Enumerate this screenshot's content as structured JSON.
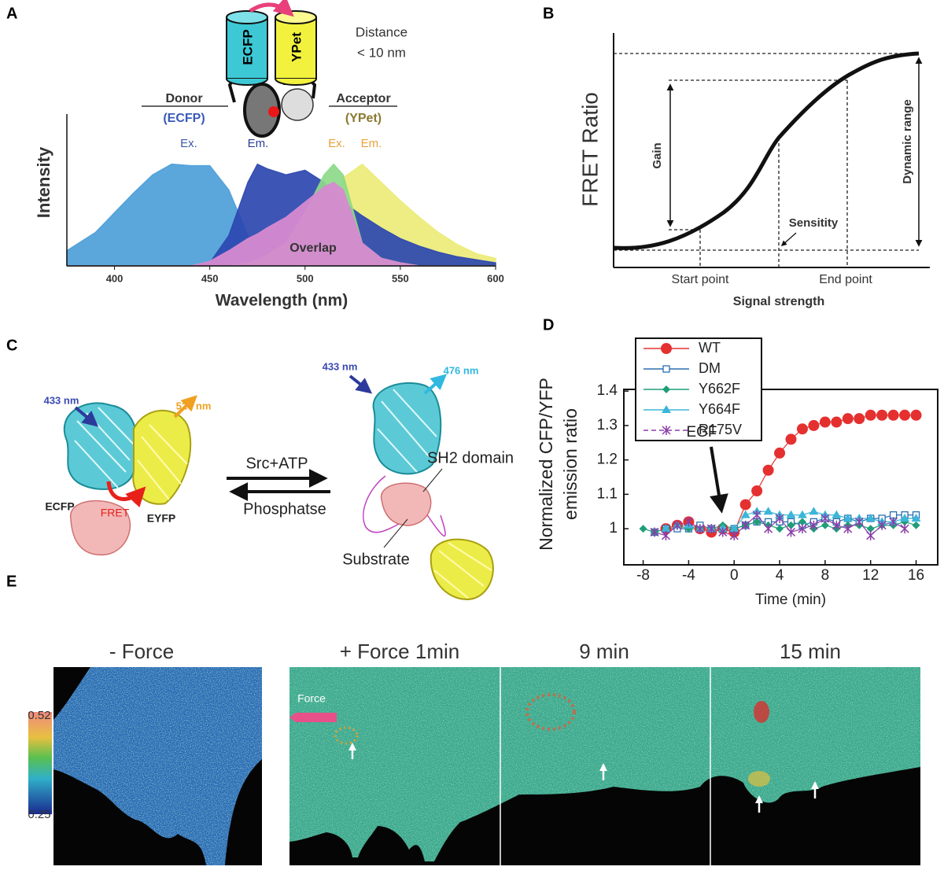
{
  "panel_labels": [
    "A",
    "B",
    "C",
    "D",
    "E"
  ],
  "chart_data": [
    {
      "type": "area",
      "xlabel": "Wavelength (nm)",
      "ylabel": "Intensity",
      "xlim": [
        375,
        600
      ],
      "xticks": [
        400,
        450,
        500,
        550,
        600
      ],
      "ylim": [
        0,
        1
      ],
      "x": [
        375,
        390,
        400,
        410,
        420,
        430,
        440,
        450,
        460,
        470,
        475,
        480,
        490,
        500,
        510,
        515,
        520,
        530,
        540,
        550,
        560,
        570,
        580,
        590,
        600
      ],
      "series": [
        {
          "name": "Ex.",
          "color": "#4d9fd9",
          "values": [
            0.1,
            0.22,
            0.35,
            0.48,
            0.6,
            0.67,
            0.66,
            0.66,
            0.5,
            0.2,
            0.1,
            0.05,
            0.02,
            0,
            0,
            0,
            0,
            0,
            0,
            0,
            0,
            0,
            0,
            0,
            0
          ]
        },
        {
          "name": "Em.",
          "color": "#ebeb78",
          "values": [
            0,
            0,
            0,
            0,
            0,
            0,
            0,
            0,
            0,
            0,
            0,
            0,
            0.03,
            0.12,
            0.35,
            0.45,
            0.58,
            0.67,
            0.55,
            0.43,
            0.32,
            0.22,
            0.14,
            0.08,
            0.05
          ]
        },
        {
          "name": "Em.",
          "color": "#2d48b0",
          "values": [
            0,
            0,
            0,
            0,
            0,
            0,
            0,
            0.02,
            0.2,
            0.55,
            0.67,
            0.64,
            0.6,
            0.63,
            0.55,
            0.48,
            0.42,
            0.33,
            0.25,
            0.18,
            0.13,
            0.09,
            0.06,
            0.04,
            0.02
          ]
        },
        {
          "name": "Ex.",
          "color": "#8dd98a",
          "values": [
            0,
            0,
            0,
            0,
            0,
            0,
            0,
            0,
            0,
            0.02,
            0.04,
            0.07,
            0.15,
            0.35,
            0.6,
            0.67,
            0.6,
            0.15,
            0.05,
            0.02,
            0,
            0,
            0,
            0,
            0
          ]
        },
        {
          "name": "Overlap",
          "color": "#d68ad0",
          "values": [
            0,
            0,
            0,
            0,
            0,
            0,
            0,
            0.03,
            0.1,
            0.18,
            0.21,
            0.25,
            0.32,
            0.42,
            0.52,
            0.55,
            0.5,
            0.15,
            0.05,
            0.02,
            0,
            0,
            0,
            0,
            0
          ]
        }
      ]
    },
    {
      "type": "line",
      "xlabel": "Time (min)",
      "ylabel": [
        "Normalized CFP/YFP",
        "emission ratio"
      ],
      "annotation": "EGF",
      "legend": "upper left",
      "xlim": [
        -9.7,
        17.9
      ],
      "xticks": [
        -8,
        -4,
        0,
        4,
        8,
        12,
        16
      ],
      "ylim": [
        0.895,
        1.405
      ],
      "yticks": [
        1,
        1.1,
        1.2,
        1.3,
        1.4
      ],
      "x": [
        -8,
        -7,
        -6,
        -5,
        -4,
        -3,
        -2,
        -1,
        0,
        1,
        2,
        3,
        4,
        5,
        6,
        7,
        8,
        9,
        10,
        11,
        12,
        13,
        14,
        15,
        16
      ],
      "series": [
        {
          "name": "WT",
          "color": "#e53030",
          "marker": "circle",
          "values": [
            null,
            null,
            1.0,
            1.01,
            1.02,
            1.0,
            0.99,
            1.0,
            0.99,
            1.07,
            1.11,
            1.17,
            1.22,
            1.26,
            1.29,
            1.3,
            1.31,
            1.31,
            1.32,
            1.32,
            1.33,
            1.33,
            1.33,
            1.33,
            1.33
          ]
        },
        {
          "name": "DM",
          "color": "#2a6fb0",
          "marker": "square",
          "values": [
            null,
            0.99,
            1.0,
            1.0,
            1.0,
            1.01,
            1.0,
            1.0,
            1.0,
            1.01,
            1.02,
            1.02,
            1.02,
            1.02,
            1.01,
            1.02,
            1.03,
            1.02,
            1.03,
            1.02,
            1.03,
            1.03,
            1.04,
            1.04,
            1.04
          ]
        },
        {
          "name": "Y662F",
          "color": "#1f9e78",
          "marker": "diamond",
          "values": [
            1.0,
            0.99,
            1.0,
            1.01,
            1.0,
            1.0,
            1.0,
            1.01,
            1.0,
            1.01,
            1.02,
            1.01,
            1.0,
            1.01,
            1.02,
            1.0,
            1.01,
            1.0,
            1.01,
            1.01,
            1.0,
            1.01,
            1.01,
            1.02,
            1.01
          ]
        },
        {
          "name": "Y664F",
          "color": "#3bb6d8",
          "marker": "triangle",
          "values": [
            null,
            null,
            1.0,
            1.01,
            1.01,
            1.0,
            1.0,
            1.0,
            1.0,
            1.04,
            1.05,
            1.05,
            1.04,
            1.04,
            1.04,
            1.05,
            1.04,
            1.04,
            1.03,
            1.03,
            1.03,
            1.02,
            1.02,
            1.03,
            1.03
          ]
        },
        {
          "name": "R175V",
          "color": "#8b3ea8",
          "marker": "asterisk",
          "values": [
            null,
            0.99,
            0.98,
            1.01,
            1.02,
            1.0,
            1.0,
            0.99,
            0.98,
            1.01,
            1.04,
            1.0,
            1.03,
            0.99,
            1.0,
            1.01,
            1.03,
            1.01,
            1.0,
            1.02,
            0.98,
            1.01,
            1.02,
            1.0,
            null
          ]
        }
      ]
    }
  ],
  "panels": {
    "A": {
      "proteins": [
        "ECFP",
        "YPet"
      ],
      "distance": [
        "Distance",
        "< 10 nm"
      ],
      "donor": [
        "Donor",
        "(ECFP)"
      ],
      "acceptor": [
        "Acceptor",
        "(YPet)"
      ]
    },
    "B": {
      "ylabel": "FRET Ratio",
      "xlabel": "Signal strength",
      "gain": "Gain",
      "dynamic_range": "Dynamic range",
      "sensitivity": "Sensitity",
      "start": "Start point",
      "end": "End point"
    },
    "C": {
      "left": {
        "excitation": "433 nm",
        "emission": "527 nm",
        "donor": "ECFP",
        "fret": "FRET",
        "acceptor": "EYFP"
      },
      "forward": "Src+ATP",
      "reverse": "Phosphatse",
      "right": {
        "excitation": "433 nm",
        "emission": "476 nm",
        "domain": "SH2 domain",
        "substrate": "Substrate"
      }
    },
    "E": {
      "titles": [
        "- Force",
        "+ Force 1min",
        "9 min",
        "15 min"
      ],
      "colorbar": [
        "0.52",
        "0.25"
      ],
      "force": "Force"
    }
  }
}
